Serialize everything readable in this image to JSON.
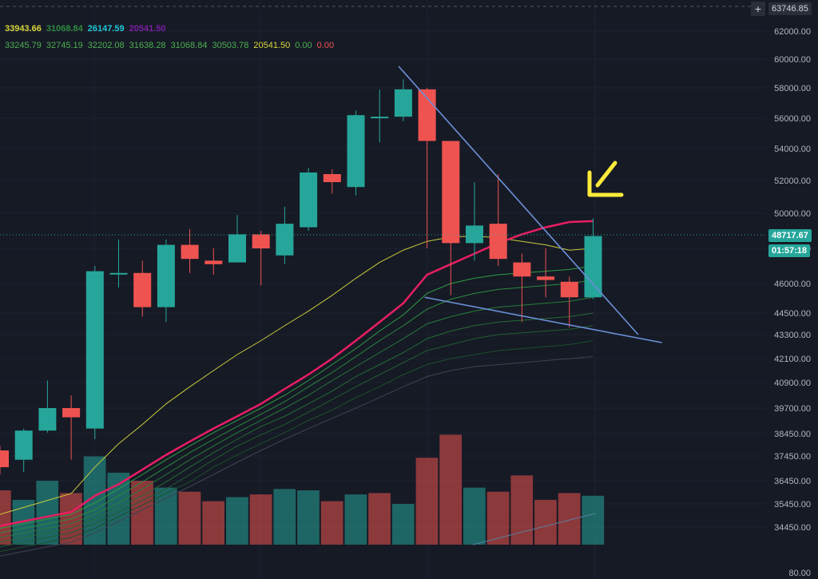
{
  "colors": {
    "background": "#161a25",
    "grid": "#1f2331",
    "up": "#26a69a",
    "down": "#ef5350",
    "up_volume": "#26a69a",
    "down_volume": "#ef5350",
    "ma_main": "#e91e63",
    "ma_yellow": "#c9cc3a",
    "trendline": "#6b8fd6",
    "arrow": "#ffeb3b"
  },
  "legend": {
    "row1": [
      {
        "text": "33943.66",
        "color": "#d6d63a"
      },
      {
        "text": "31068.84",
        "color": "#2e8b3e"
      },
      {
        "text": "26147.59",
        "color": "#1ec8d8"
      },
      {
        "text": "20541.50",
        "color": "#7b1fa2"
      }
    ],
    "row2": [
      {
        "text": "33245.79",
        "color": "#4caf50"
      },
      {
        "text": "32745.19",
        "color": "#4caf50"
      },
      {
        "text": "32202.08",
        "color": "#4caf50"
      },
      {
        "text": "31638.28",
        "color": "#4caf50"
      },
      {
        "text": "31068.84",
        "color": "#4caf50"
      },
      {
        "text": "30503.78",
        "color": "#4caf50"
      },
      {
        "text": "20541.50",
        "color": "#d6d63a"
      },
      {
        "text": "0.00",
        "color": "#4caf50"
      },
      {
        "text": "0.00",
        "color": "#ef5350"
      }
    ]
  },
  "tags": {
    "top_value": "63746.85",
    "plus_icon": "+",
    "last_price": "48717.67",
    "countdown": "01:57:18",
    "bottom_indicator": "80.00"
  },
  "chart_data": {
    "type": "candlestick",
    "y_axis_ticks": [
      62000,
      60000,
      58000,
      56000,
      54000,
      52000,
      50000,
      48000,
      46000,
      44500,
      43300,
      42100,
      40900,
      39700,
      38450,
      37450,
      36450,
      35450,
      34450
    ],
    "y_axis_labels": [
      "62000.00",
      "60000.00",
      "58000.00",
      "56000.00",
      "54000.00",
      "52000.00",
      "50000.00",
      "48000.00",
      "46000.00",
      "44500.00",
      "43300.00",
      "42100.00",
      "40900.00",
      "39700.00",
      "38450.00",
      "37450.00",
      "36450.00",
      "35450.00",
      "34450.00"
    ],
    "candles": [
      {
        "o": 37700,
        "h": 37900,
        "l": 36700,
        "c": 37000
      },
      {
        "o": 37300,
        "h": 38700,
        "l": 36800,
        "c": 38600
      },
      {
        "o": 38600,
        "h": 41000,
        "l": 38500,
        "c": 39700
      },
      {
        "o": 39700,
        "h": 40300,
        "l": 37300,
        "c": 39250
      },
      {
        "o": 38700,
        "h": 47000,
        "l": 38200,
        "c": 46700
      },
      {
        "o": 46600,
        "h": 48500,
        "l": 45800,
        "c": 46600
      },
      {
        "o": 46600,
        "h": 47300,
        "l": 44300,
        "c": 44800
      },
      {
        "o": 44800,
        "h": 48500,
        "l": 44000,
        "c": 48200
      },
      {
        "o": 48200,
        "h": 49100,
        "l": 46600,
        "c": 47400
      },
      {
        "o": 47300,
        "h": 48000,
        "l": 46500,
        "c": 47100
      },
      {
        "o": 47200,
        "h": 49900,
        "l": 47200,
        "c": 48800
      },
      {
        "o": 48800,
        "h": 49000,
        "l": 45900,
        "c": 48000
      },
      {
        "o": 47600,
        "h": 50400,
        "l": 47100,
        "c": 49400
      },
      {
        "o": 49200,
        "h": 52800,
        "l": 49000,
        "c": 52500
      },
      {
        "o": 52400,
        "h": 52700,
        "l": 51200,
        "c": 51900
      },
      {
        "o": 51600,
        "h": 56500,
        "l": 51100,
        "c": 56200
      },
      {
        "o": 56100,
        "h": 57900,
        "l": 54400,
        "c": 56100
      },
      {
        "o": 56100,
        "h": 58600,
        "l": 55800,
        "c": 57900
      },
      {
        "o": 57900,
        "h": 58000,
        "l": 48000,
        "c": 54500
      },
      {
        "o": 54500,
        "h": 54500,
        "l": 45400,
        "c": 48300
      },
      {
        "o": 48300,
        "h": 51900,
        "l": 47300,
        "c": 49300
      },
      {
        "o": 49400,
        "h": 52400,
        "l": 47000,
        "c": 47400
      },
      {
        "o": 47200,
        "h": 47700,
        "l": 44000,
        "c": 46400
      },
      {
        "o": 46400,
        "h": 48000,
        "l": 45300,
        "c": 46200
      },
      {
        "o": 46100,
        "h": 46400,
        "l": 43700,
        "c": 45300
      },
      {
        "o": 45300,
        "h": 49700,
        "l": 45200,
        "c": 48700
      }
    ],
    "volumes": [
      {
        "v": 0.4,
        "up": false
      },
      {
        "v": 0.33,
        "up": true
      },
      {
        "v": 0.47,
        "up": true
      },
      {
        "v": 0.38,
        "up": false
      },
      {
        "v": 0.65,
        "up": true
      },
      {
        "v": 0.53,
        "up": true
      },
      {
        "v": 0.47,
        "up": false
      },
      {
        "v": 0.42,
        "up": true
      },
      {
        "v": 0.39,
        "up": false
      },
      {
        "v": 0.32,
        "up": false
      },
      {
        "v": 0.35,
        "up": true
      },
      {
        "v": 0.37,
        "up": false
      },
      {
        "v": 0.41,
        "up": true
      },
      {
        "v": 0.4,
        "up": true
      },
      {
        "v": 0.32,
        "up": false
      },
      {
        "v": 0.37,
        "up": true
      },
      {
        "v": 0.38,
        "up": false
      },
      {
        "v": 0.3,
        "up": true
      },
      {
        "v": 0.64,
        "up": false
      },
      {
        "v": 0.81,
        "up": false
      },
      {
        "v": 0.42,
        "up": true
      },
      {
        "v": 0.39,
        "up": false
      },
      {
        "v": 0.51,
        "up": false
      },
      {
        "v": 0.33,
        "up": false
      },
      {
        "v": 0.38,
        "up": false
      },
      {
        "v": 0.36,
        "up": true
      }
    ],
    "ma_main": [
      34500,
      34700,
      34900,
      35100,
      35800,
      36300,
      36900,
      37500,
      38100,
      38700,
      39300,
      39900,
      40600,
      41300,
      42100,
      43000,
      44000,
      45000,
      46500,
      47100,
      47700,
      48300,
      48800,
      49200,
      49500,
      49550
    ],
    "ma_yellow": [
      35000,
      35300,
      35600,
      35900,
      37000,
      38000,
      38900,
      39900,
      40700,
      41500,
      42300,
      43000,
      43800,
      44600,
      45400,
      46300,
      47200,
      47900,
      48400,
      48650,
      48700,
      48600,
      48400,
      48200,
      47900,
      48000
    ],
    "ribbons": [
      [
        34400,
        34600,
        34800,
        35000,
        35500,
        36100,
        36700,
        37300,
        37900,
        38500,
        39100,
        39700,
        40300,
        41000,
        41800,
        42600,
        43500,
        44400,
        45500,
        46000,
        46300,
        46500,
        46600,
        46700,
        46800,
        47000
      ],
      [
        34200,
        34400,
        34600,
        34800,
        35200,
        35800,
        36400,
        37000,
        37600,
        38200,
        38800,
        39400,
        40000,
        40700,
        41400,
        42200,
        43000,
        43800,
        44700,
        45200,
        45500,
        45700,
        45800,
        45900,
        46000,
        46200
      ],
      [
        34000,
        34200,
        34400,
        34600,
        35000,
        35500,
        36100,
        36700,
        37300,
        37900,
        38500,
        39100,
        39700,
        40300,
        41000,
        41700,
        42400,
        43100,
        43900,
        44300,
        44600,
        44800,
        44900,
        45000,
        45100,
        45300
      ],
      [
        33800,
        34000,
        34200,
        34400,
        34800,
        35300,
        35800,
        36400,
        37000,
        37600,
        38200,
        38800,
        39300,
        39900,
        40500,
        41200,
        41800,
        42400,
        43100,
        43500,
        43800,
        44000,
        44100,
        44200,
        44300,
        44500
      ],
      [
        33600,
        33800,
        34000,
        34200,
        34600,
        35100,
        35600,
        36100,
        36700,
        37300,
        37900,
        38400,
        38900,
        39500,
        40100,
        40700,
        41300,
        41900,
        42500,
        42800,
        43100,
        43300,
        43400,
        43500,
        43600,
        43800
      ],
      [
        33400,
        33600,
        33800,
        34000,
        34400,
        34900,
        35400,
        35900,
        36400,
        37000,
        37500,
        38000,
        38500,
        39100,
        39600,
        40200,
        40700,
        41300,
        41800,
        42100,
        42300,
        42500,
        42600,
        42700,
        42800,
        43000
      ],
      [
        33200,
        33400,
        33600,
        33800,
        34200,
        34700,
        35200,
        35700,
        36200,
        36700,
        37200,
        37700,
        38200,
        38700,
        39200,
        39700,
        40200,
        40700,
        41200,
        41500,
        41700,
        41800,
        41900,
        42000,
        42100,
        42200
      ]
    ],
    "trendlines": [
      {
        "from": {
          "bar": 16.8,
          "price": 59500
        },
        "to": {
          "bar": 26.9,
          "price": 43300
        }
      },
      {
        "from": {
          "bar": 17.9,
          "price": 45300
        },
        "to": {
          "bar": 27.9,
          "price": 42900
        }
      }
    ]
  }
}
